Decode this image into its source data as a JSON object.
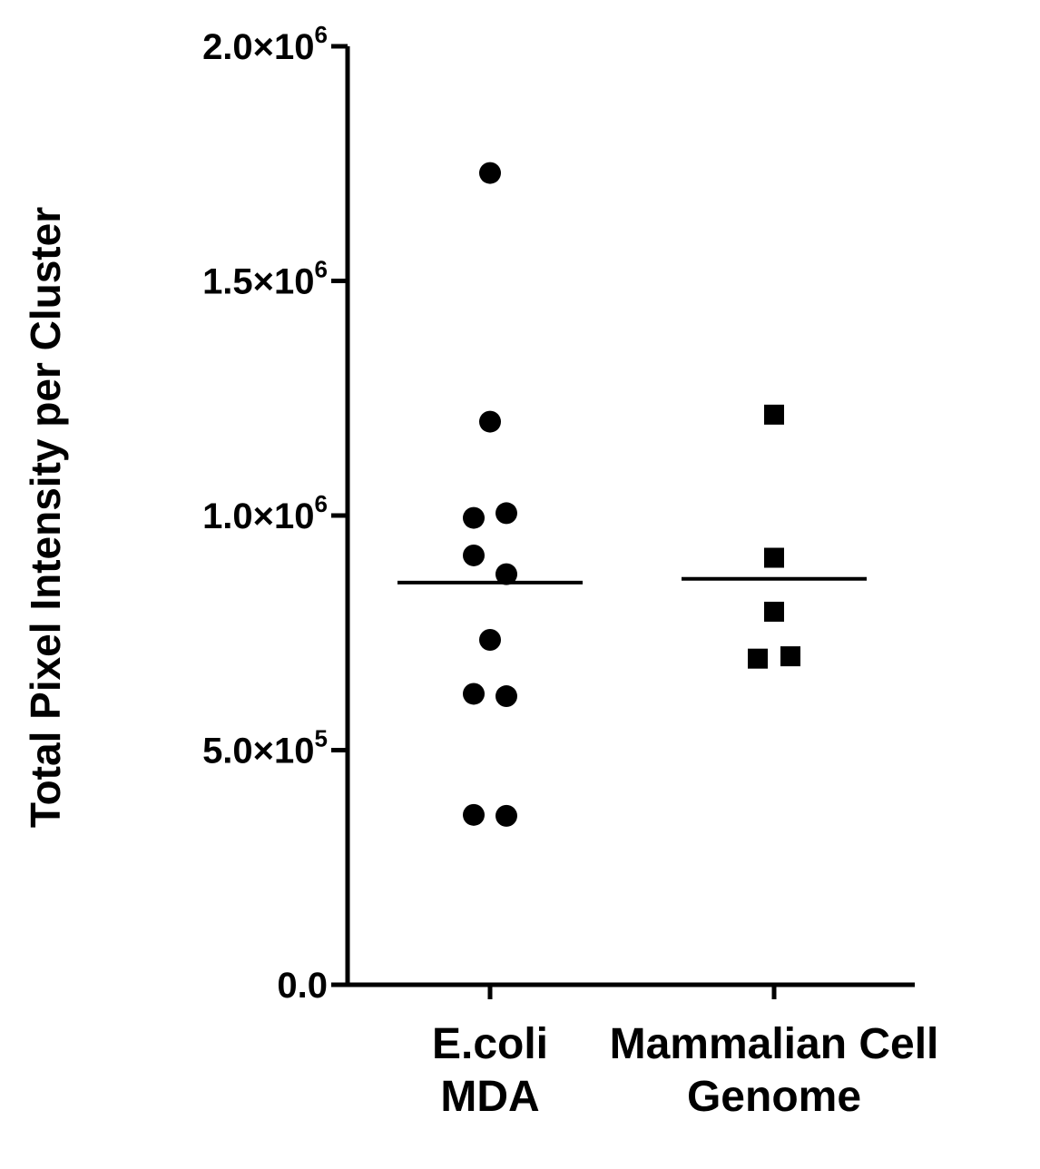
{
  "chart_data": {
    "type": "scatter",
    "title": "",
    "ylabel": "Total Pixel Intensity per Cluster",
    "xlabel": "",
    "ylim": [
      0,
      2000000
    ],
    "yticks": [
      {
        "value": 0,
        "mantissa": "0.0",
        "exponent": ""
      },
      {
        "value": 500000,
        "mantissa": "5.0×10",
        "exponent": "5"
      },
      {
        "value": 1000000,
        "mantissa": "1.0×10",
        "exponent": "6"
      },
      {
        "value": 1500000,
        "mantissa": "1.5×10",
        "exponent": "6"
      },
      {
        "value": 2000000,
        "mantissa": "2.0×10",
        "exponent": "6"
      }
    ],
    "grid": false,
    "legend": "none",
    "color": "#000000",
    "categories": [
      {
        "line1": "E.coli",
        "line2": "MDA"
      },
      {
        "line1": "Mammalian Cell",
        "line2": "Genome"
      }
    ],
    "series": [
      {
        "category_index": 0,
        "marker": "circle",
        "mean": 857000,
        "values": [
          1730000,
          1200000,
          1005000,
          995000,
          915000,
          875000,
          735000,
          620000,
          615000,
          362000,
          360000
        ],
        "jitter": [
          0,
          0,
          0.6,
          -0.6,
          -0.6,
          0.6,
          0,
          -0.6,
          0.6,
          -0.6,
          0.6
        ]
      },
      {
        "category_index": 1,
        "marker": "square",
        "mean": 865000,
        "values": [
          1215000,
          910000,
          795000,
          700000,
          695000
        ],
        "jitter": [
          0,
          0,
          0,
          0.6,
          -0.6
        ]
      }
    ]
  }
}
